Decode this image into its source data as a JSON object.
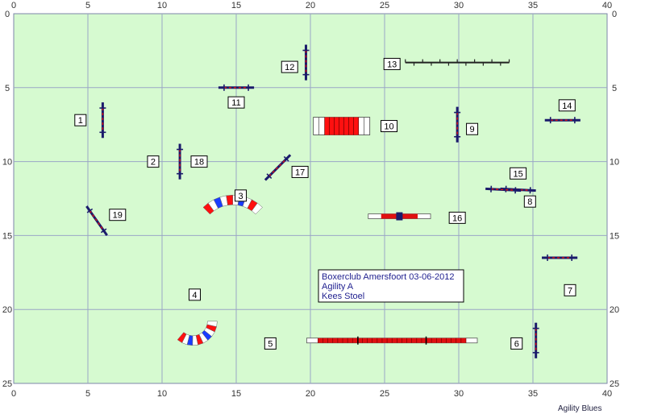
{
  "field": {
    "width_m": 40,
    "height_m": 25,
    "background": "#d6fad0",
    "grid_color": "#9aa6c6",
    "x_ticks": [
      "0",
      "5",
      "10",
      "15",
      "20",
      "25",
      "30",
      "35",
      "40"
    ],
    "y_ticks": [
      "0",
      "5",
      "10",
      "15",
      "20",
      "25"
    ]
  },
  "info_box": {
    "line1": "Boxerclub Amersfoort 03-06-2012",
    "line2": "Agility A",
    "line3": "Kees Stoel"
  },
  "brand": "Agility Blues",
  "colors": {
    "pole": "#1b1b6b",
    "bar_red": "#e01010",
    "tunnel_red": "#ff1010",
    "tunnel_blue": "#1a3cff",
    "tunnel_white": "#ffffff"
  },
  "obstacles": [
    {
      "id": "1",
      "kind": "jump",
      "x": 6.0,
      "y": 7.2,
      "angle": 90,
      "len": 2.4
    },
    {
      "id": "2",
      "kind": "jump",
      "x": 11.2,
      "y": 10.0,
      "angle": 90,
      "len": 2.4
    },
    {
      "id": "3",
      "kind": "tunnel",
      "x": 16.4,
      "y": 13.3,
      "shape": "arc_right"
    },
    {
      "id": "4",
      "kind": "tunnel",
      "x": 11.0,
      "y": 19.0,
      "shape": "arc_left"
    },
    {
      "id": "5",
      "kind": "dogwalk",
      "x": 25.5,
      "y": 22.1,
      "len": 11.5
    },
    {
      "id": "6",
      "kind": "jump",
      "x": 35.2,
      "y": 22.1,
      "angle": 90,
      "len": 2.4
    },
    {
      "id": "7",
      "kind": "jump",
      "x": 36.8,
      "y": 16.5,
      "angle": 0,
      "len": 2.4
    },
    {
      "id": "8",
      "kind": "jump",
      "x": 34.0,
      "y": 11.9,
      "angle": 3,
      "len": 2.4
    },
    {
      "id": "9",
      "kind": "jump",
      "x": 29.9,
      "y": 7.5,
      "angle": 90,
      "len": 2.4
    },
    {
      "id": "10",
      "kind": "tire_wall",
      "x": 22.0,
      "y": 7.6
    },
    {
      "id": "11",
      "kind": "jump",
      "x": 15.0,
      "y": 5.0,
      "angle": 0,
      "len": 2.4
    },
    {
      "id": "12",
      "kind": "jump",
      "x": 19.7,
      "y": 3.3,
      "angle": 90,
      "len": 2.4
    },
    {
      "id": "13",
      "kind": "weave",
      "x": 29.9,
      "y": 3.3,
      "len": 7.0
    },
    {
      "id": "14",
      "kind": "jump",
      "x": 37.0,
      "y": 7.2,
      "angle": 0,
      "len": 2.4
    },
    {
      "id": "15",
      "kind": "jump",
      "x": 33.0,
      "y": 11.9,
      "angle": 3,
      "len": 2.4
    },
    {
      "id": "16",
      "kind": "seesaw",
      "x": 26.0,
      "y": 13.7,
      "len": 4.2
    },
    {
      "id": "17",
      "kind": "jump",
      "x": 17.8,
      "y": 10.4,
      "angle": -45,
      "len": 2.4
    },
    {
      "id": "18",
      "kind": "jump",
      "x": 11.2,
      "y": 10.0,
      "angle": 90,
      "len": 0.1
    },
    {
      "id": "19",
      "kind": "jump",
      "x": 5.6,
      "y": 14.0,
      "angle": 55,
      "len": 2.4
    }
  ],
  "labels": [
    {
      "text": "1",
      "x": 4.5,
      "y": 7.2
    },
    {
      "text": "2",
      "x": 9.4,
      "y": 10.0
    },
    {
      "text": "3",
      "x": 15.3,
      "y": 12.3
    },
    {
      "text": "4",
      "x": 12.2,
      "y": 19.0
    },
    {
      "text": "5",
      "x": 17.3,
      "y": 22.3
    },
    {
      "text": "6",
      "x": 33.9,
      "y": 22.3
    },
    {
      "text": "7",
      "x": 37.5,
      "y": 18.7
    },
    {
      "text": "8",
      "x": 34.8,
      "y": 12.7
    },
    {
      "text": "9",
      "x": 30.9,
      "y": 7.8
    },
    {
      "text": "10",
      "x": 25.3,
      "y": 7.6
    },
    {
      "text": "11",
      "x": 15.0,
      "y": 6.0
    },
    {
      "text": "12",
      "x": 18.6,
      "y": 3.6
    },
    {
      "text": "13",
      "x": 25.5,
      "y": 3.4
    },
    {
      "text": "14",
      "x": 37.3,
      "y": 6.2
    },
    {
      "text": "15",
      "x": 34.0,
      "y": 10.8
    },
    {
      "text": "16",
      "x": 29.9,
      "y": 13.8
    },
    {
      "text": "17",
      "x": 19.3,
      "y": 10.7
    },
    {
      "text": "18",
      "x": 12.5,
      "y": 10.0
    },
    {
      "text": "19",
      "x": 7.0,
      "y": 13.6
    }
  ]
}
